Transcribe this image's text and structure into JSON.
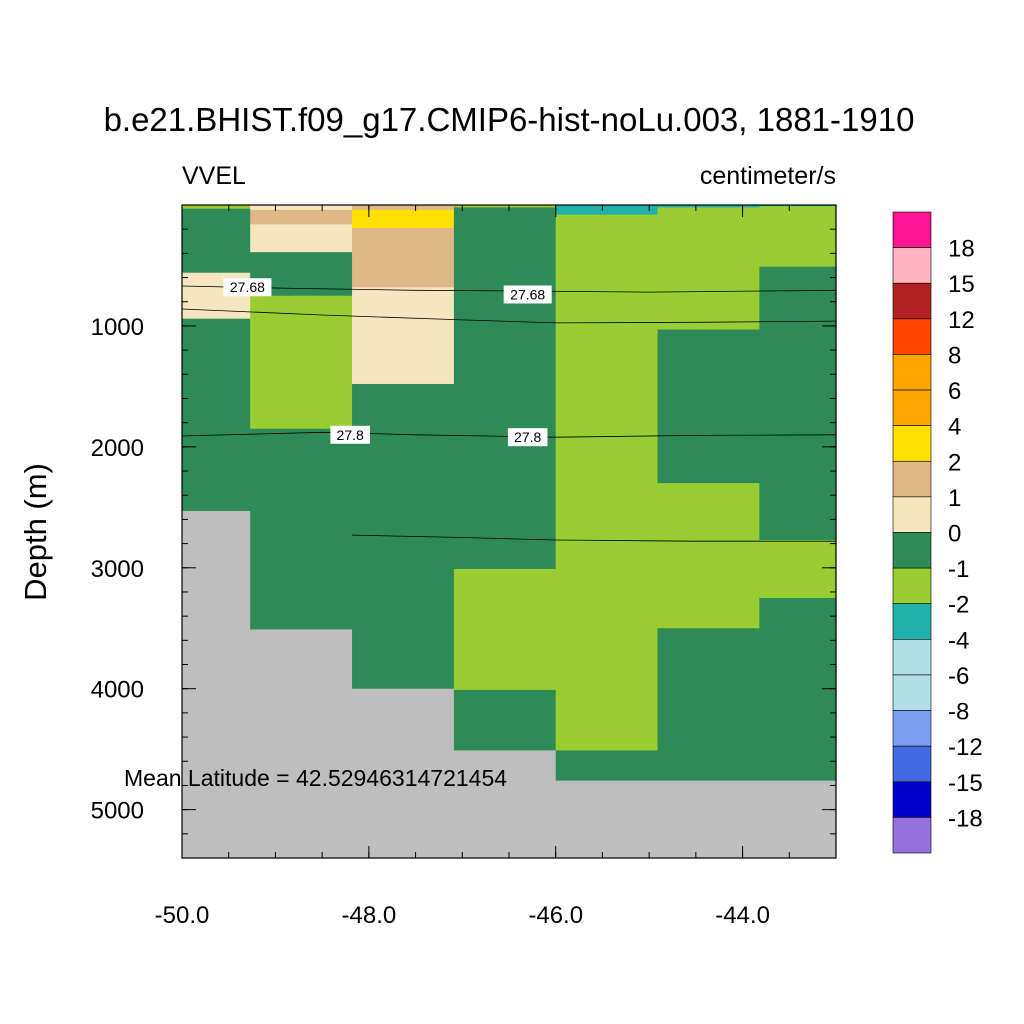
{
  "chart_data": {
    "type": "heatmap",
    "title": "b.e21.BHIST.f09_g17.CMIP6-hist-noLu.003, 1881-1910",
    "variable": "VVEL",
    "units": "centimeter/s",
    "xlabel": "",
    "ylabel": "Depth (m)",
    "xlim": [
      -50.0,
      -43.0
    ],
    "ylim": [
      5400,
      0
    ],
    "x_ticks": [
      -50.0,
      -48.0,
      -46.0,
      -44.0
    ],
    "x_tick_labels": [
      "-50.0",
      "-48.0",
      "-46.0",
      "-44.0"
    ],
    "y_ticks": [
      1000,
      2000,
      3000,
      4000,
      5000
    ],
    "y_tick_labels": [
      "1000",
      "2000",
      "3000",
      "4000",
      "5000"
    ],
    "annotation": "Mean Latitude = 42.52946314721454",
    "colorbar": {
      "labels": [
        "18",
        "15",
        "12",
        "8",
        "6",
        "4",
        "2",
        "1",
        "0",
        "-1",
        "-2",
        "-4",
        "-6",
        "-8",
        "-12",
        "-15",
        "-18"
      ],
      "colors": [
        "#ff1493",
        "#ffb6c1",
        "#b22222",
        "#ff4500",
        "#ffa500",
        "#ffa500",
        "#ffe100",
        "#deb887",
        "#f5e6bf",
        "#2e8b57",
        "#9acd32",
        "#20b2aa",
        "#b0e0e6",
        "#b0e0e6",
        "#7b9ef0",
        "#4169e1",
        "#0000cd",
        "#9370db"
      ]
    },
    "cells": [
      {
        "x0": -50.0,
        "x1": -49.27,
        "y0": 0,
        "y1": 30,
        "value": -1
      },
      {
        "x0": -50.0,
        "x1": -49.27,
        "y0": 30,
        "y1": 560,
        "value": 0
      },
      {
        "x0": -50.0,
        "x1": -49.27,
        "y0": 560,
        "y1": 940,
        "value": 1
      },
      {
        "x0": -50.0,
        "x1": -49.27,
        "y0": 940,
        "y1": 2530,
        "value": 0
      },
      {
        "x0": -50.0,
        "x1": -49.27,
        "y0": 2530,
        "y1": 5400,
        "value": null
      },
      {
        "x0": -49.27,
        "x1": -48.18,
        "y0": 0,
        "y1": 40,
        "value": 1
      },
      {
        "x0": -49.27,
        "x1": -48.18,
        "y0": 40,
        "y1": 160,
        "value": 2
      },
      {
        "x0": -49.27,
        "x1": -48.18,
        "y0": 160,
        "y1": 390,
        "value": 1
      },
      {
        "x0": -49.27,
        "x1": -48.18,
        "y0": 390,
        "y1": 750,
        "value": 0
      },
      {
        "x0": -49.27,
        "x1": -48.18,
        "y0": 750,
        "y1": 1850,
        "value": -1
      },
      {
        "x0": -49.27,
        "x1": -48.18,
        "y0": 1850,
        "y1": 3510,
        "value": 0
      },
      {
        "x0": -49.27,
        "x1": -48.18,
        "y0": 3510,
        "y1": 5400,
        "value": null
      },
      {
        "x0": -48.18,
        "x1": -47.09,
        "y0": 0,
        "y1": 40,
        "value": 2
      },
      {
        "x0": -48.18,
        "x1": -47.09,
        "y0": 40,
        "y1": 190,
        "value": 4
      },
      {
        "x0": -48.18,
        "x1": -47.09,
        "y0": 190,
        "y1": 680,
        "value": 2
      },
      {
        "x0": -48.18,
        "x1": -47.09,
        "y0": 680,
        "y1": 1480,
        "value": 1
      },
      {
        "x0": -48.18,
        "x1": -47.09,
        "y0": 1480,
        "y1": 4000,
        "value": 0
      },
      {
        "x0": -48.18,
        "x1": -47.09,
        "y0": 4000,
        "y1": 5400,
        "value": null
      },
      {
        "x0": -47.09,
        "x1": -46.0,
        "y0": 0,
        "y1": 20,
        "value": -1
      },
      {
        "x0": -47.09,
        "x1": -46.0,
        "y0": 20,
        "y1": 3010,
        "value": 0
      },
      {
        "x0": -47.09,
        "x1": -46.0,
        "y0": 3010,
        "y1": 4010,
        "value": -1
      },
      {
        "x0": -47.09,
        "x1": -46.0,
        "y0": 4010,
        "y1": 4510,
        "value": 0
      },
      {
        "x0": -47.09,
        "x1": -46.0,
        "y0": 4510,
        "y1": 5400,
        "value": null
      },
      {
        "x0": -46.0,
        "x1": -44.91,
        "y0": 0,
        "y1": 80,
        "value": -2
      },
      {
        "x0": -46.0,
        "x1": -44.91,
        "y0": 80,
        "y1": 4510,
        "value": -1
      },
      {
        "x0": -46.0,
        "x1": -44.91,
        "y0": 4510,
        "y1": 4760,
        "value": 0
      },
      {
        "x0": -46.0,
        "x1": -44.91,
        "y0": 4760,
        "y1": 5400,
        "value": null
      },
      {
        "x0": -44.91,
        "x1": -43.82,
        "y0": 0,
        "y1": 20,
        "value": -2
      },
      {
        "x0": -44.91,
        "x1": -43.82,
        "y0": 20,
        "y1": 1030,
        "value": -1
      },
      {
        "x0": -44.91,
        "x1": -43.82,
        "y0": 1030,
        "y1": 2300,
        "value": 0
      },
      {
        "x0": -44.91,
        "x1": -43.82,
        "y0": 2300,
        "y1": 3500,
        "value": -1
      },
      {
        "x0": -44.91,
        "x1": -43.82,
        "y0": 3500,
        "y1": 4760,
        "value": 0
      },
      {
        "x0": -44.91,
        "x1": -43.82,
        "y0": 4760,
        "y1": 5400,
        "value": null
      },
      {
        "x0": -43.82,
        "x1": -43.0,
        "y0": 0,
        "y1": 10,
        "value": -2
      },
      {
        "x0": -43.82,
        "x1": -43.0,
        "y0": 10,
        "y1": 510,
        "value": -1
      },
      {
        "x0": -43.82,
        "x1": -43.0,
        "y0": 510,
        "y1": 2770,
        "value": 0
      },
      {
        "x0": -43.82,
        "x1": -43.0,
        "y0": 2770,
        "y1": 3250,
        "value": -1
      },
      {
        "x0": -43.82,
        "x1": -43.0,
        "y0": 3250,
        "y1": 4760,
        "value": 0
      },
      {
        "x0": -43.82,
        "x1": -43.0,
        "y0": 4760,
        "y1": 5400,
        "value": null
      }
    ],
    "contours": [
      {
        "label": "27.68",
        "points": [
          [
            -50.0,
            670
          ],
          [
            -48.8,
            690
          ],
          [
            -47.5,
            705
          ],
          [
            -46.5,
            710
          ],
          [
            -45.0,
            720
          ],
          [
            -43.0,
            705
          ]
        ],
        "label_positions": [
          [
            -49.3,
            680
          ],
          [
            -46.3,
            740
          ]
        ]
      },
      {
        "label": "",
        "points": [
          [
            -50.0,
            860
          ],
          [
            -48.5,
            910
          ],
          [
            -47.0,
            950
          ],
          [
            -46.0,
            975
          ],
          [
            -44.5,
            970
          ],
          [
            -43.0,
            960
          ]
        ],
        "label_positions": []
      },
      {
        "label": "27.8",
        "points": [
          [
            -50.0,
            1910
          ],
          [
            -48.5,
            1880
          ],
          [
            -47.5,
            1900
          ],
          [
            -46.0,
            1920
          ],
          [
            -44.5,
            1905
          ],
          [
            -43.0,
            1900
          ]
        ],
        "label_positions": [
          [
            -48.2,
            1900
          ],
          [
            -46.3,
            1920
          ]
        ]
      },
      {
        "label": "",
        "points": [
          [
            -48.18,
            2730
          ],
          [
            -47.0,
            2750
          ],
          [
            -46.0,
            2770
          ],
          [
            -44.5,
            2780
          ],
          [
            -43.0,
            2780
          ]
        ],
        "label_positions": []
      }
    ]
  }
}
